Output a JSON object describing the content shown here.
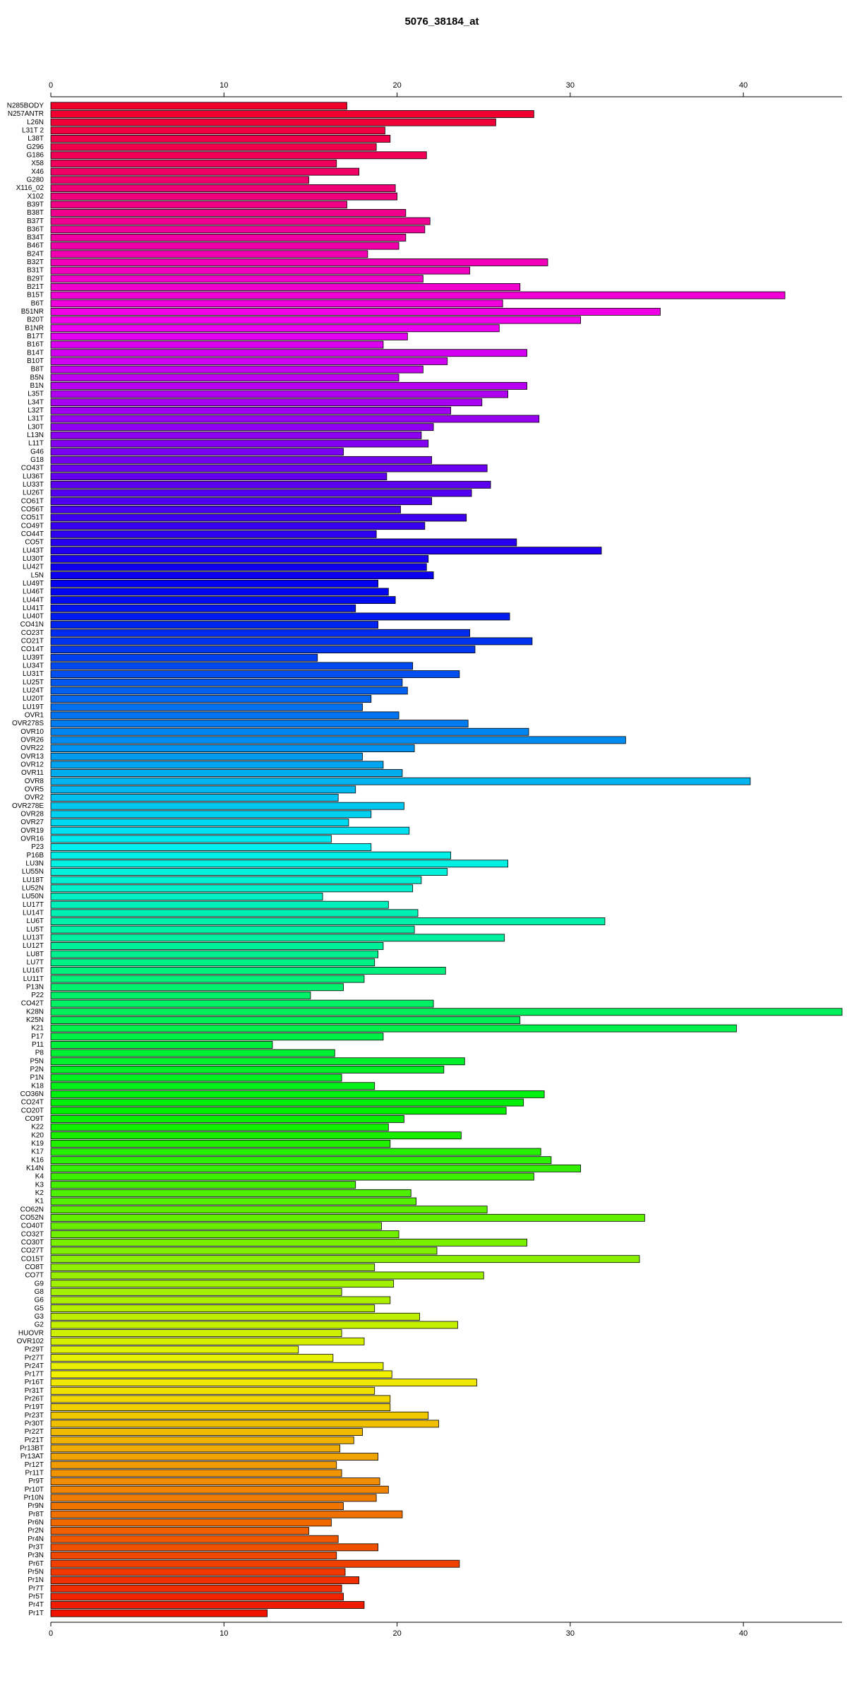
{
  "chart_data": {
    "type": "bar",
    "orientation": "horizontal",
    "title": "5076_38184_at",
    "categories": [
      "N285BODY",
      "N257ANTR",
      "L26N",
      "L31T 2",
      "L38T",
      "G296",
      "G186",
      "X58",
      "X46",
      "G280",
      "X116_02",
      "X102",
      "B39T",
      "B38T",
      "B37T",
      "B36T",
      "B34T",
      "B46T",
      "B24T",
      "B32T",
      "B31T",
      "B29T",
      "B21T",
      "B15T",
      "B6T",
      "B51NR",
      "B20T",
      "B1NR",
      "B17T",
      "B16T",
      "B14T",
      "B10T",
      "B8T",
      "B5N",
      "B1N",
      "L35T",
      "L34T",
      "L32T",
      "L31T",
      "L30T",
      "L13N",
      "L11T",
      "G46",
      "G18",
      "CO43T",
      "LU36T",
      "LU33T",
      "LU26T",
      "CO61T",
      "CO56T",
      "CO51T",
      "CO49T",
      "CO44T",
      "CO5T",
      "LU43T",
      "LU30T",
      "LU42T",
      "L5N",
      "LU49T",
      "LU46T",
      "LU44T",
      "LU41T",
      "LU40T",
      "CO41N",
      "CO23T",
      "CO21T",
      "CO14T",
      "LU39T",
      "LU34T",
      "LU31T",
      "LU25T",
      "LU24T",
      "LU20T",
      "LU19T",
      "OVR1",
      "OVR278S",
      "OVR10",
      "OVR26",
      "OVR22",
      "OVR13",
      "OVR12",
      "OVR11",
      "OVR8",
      "OVR5",
      "OVR2",
      "OVR278E",
      "OVR28",
      "OVR27",
      "OVR19",
      "OVR16",
      "P23",
      "P16B",
      "LU3N",
      "LU55N",
      "LU18T",
      "LU52N",
      "LU50N",
      "LU17T",
      "LU14T",
      "LU6T",
      "LU5T",
      "LU13T",
      "LU12T",
      "LU8T",
      "LU7T",
      "LU16T",
      "LU11T",
      "P13N",
      "P22",
      "CO42T",
      "K28N",
      "K25N",
      "K21",
      "P17",
      "P11",
      "P8",
      "P5N",
      "P2N",
      "P1N",
      "K18",
      "CO36N",
      "CO24T",
      "CO20T",
      "CO9T",
      "K22",
      "K20",
      "K19",
      "K17",
      "K16",
      "K14N",
      "K4",
      "K3",
      "K2",
      "K1",
      "CO62N",
      "CO52N",
      "CO40T",
      "CO32T",
      "CO30T",
      "CO27T",
      "CO15T",
      "CO8T",
      "CO7T",
      "G9",
      "G8",
      "G6",
      "G5",
      "G3",
      "G2",
      "HUOVR",
      "OVR102",
      "Pr29T",
      "Pr27T",
      "Pr24T",
      "Pr17T",
      "Pr16T",
      "Pr31T",
      "Pr26T",
      "Pr19T",
      "Pr23T",
      "Pr30T",
      "Pr22T",
      "Pr21T",
      "Pr13BT",
      "Pr13AT",
      "Pr12T",
      "Pr11T",
      "Pr9T",
      "Pr10T",
      "Pr10N",
      "Pr9N",
      "Pr8T",
      "Pr6N",
      "Pr2N",
      "Pr4N",
      "Pr3T",
      "Pr3N",
      "Pr6T",
      "Pr5N",
      "Pr1N",
      "Pr7T",
      "Pr5T",
      "Pr4T",
      "Pr1T"
    ],
    "values": [
      17.1,
      27.9,
      25.7,
      19.3,
      19.6,
      18.8,
      21.7,
      16.5,
      17.8,
      14.9,
      19.9,
      20.0,
      17.1,
      20.5,
      21.9,
      21.6,
      20.5,
      20.1,
      18.3,
      28.7,
      24.2,
      21.5,
      27.1,
      42.4,
      26.1,
      35.2,
      30.6,
      25.9,
      20.6,
      19.2,
      27.5,
      22.9,
      21.5,
      20.1,
      27.5,
      26.4,
      24.9,
      23.1,
      28.2,
      22.1,
      21.4,
      21.8,
      16.9,
      22.0,
      25.2,
      19.4,
      25.4,
      24.3,
      22.0,
      20.2,
      24.0,
      21.6,
      18.8,
      26.9,
      31.8,
      21.8,
      21.7,
      22.1,
      18.9,
      19.5,
      19.9,
      17.6,
      26.5,
      18.9,
      24.2,
      27.8,
      24.5,
      15.4,
      20.9,
      23.6,
      20.3,
      20.6,
      18.5,
      18.0,
      20.1,
      24.1,
      27.6,
      33.2,
      21.0,
      18.0,
      19.2,
      20.3,
      40.4,
      17.6,
      16.6,
      20.4,
      18.5,
      17.2,
      20.7,
      16.2,
      18.5,
      23.1,
      26.4,
      22.9,
      21.4,
      20.9,
      15.7,
      19.5,
      21.2,
      32.0,
      21.0,
      26.2,
      19.2,
      18.9,
      18.7,
      22.8,
      18.1,
      16.9,
      15.0,
      22.1,
      45.7,
      27.1,
      39.6,
      19.2,
      12.8,
      16.4,
      23.9,
      22.7,
      16.8,
      18.7,
      28.5,
      27.3,
      26.3,
      20.4,
      19.5,
      23.7,
      19.6,
      28.3,
      28.9,
      30.6,
      27.9,
      17.6,
      20.8,
      21.1,
      25.2,
      34.3,
      19.1,
      20.1,
      27.5,
      22.3,
      34.0,
      18.7,
      25.0,
      19.8,
      16.8,
      19.6,
      18.7,
      21.3,
      23.5,
      16.8,
      18.1,
      14.3,
      16.3,
      19.2,
      19.7,
      24.6,
      18.7,
      19.6,
      19.6,
      21.8,
      22.4,
      18.0,
      17.5,
      16.7,
      18.9,
      16.5,
      16.8,
      19.0,
      19.5,
      18.8,
      16.9,
      20.3,
      16.2,
      14.9,
      16.6,
      18.9,
      16.5,
      23.6,
      17.0,
      17.8,
      16.8,
      16.9,
      18.1,
      12.5
    ],
    "colors": [
      "hsl(350,100%,47%)",
      "hsl(348,100%,47%)",
      "hsl(346,100%,47%)",
      "hsl(344,100%,47%)",
      "hsl(342,100%,47%)",
      "hsl(341,100%,47%)",
      "hsl(339,100%,47%)",
      "hsl(337,100%,47%)",
      "hsl(335,100%,47%)",
      "hsl(333,100%,47%)",
      "hsl(331,100%,47%)",
      "hsl(329,100%,47%)",
      "hsl(327,100%,47%)",
      "hsl(325,100%,47%)",
      "hsl(324,100%,47%)",
      "hsl(322,100%,47%)",
      "hsl(320,100%,47%)",
      "hsl(318,100%,47%)",
      "hsl(316,100%,47%)",
      "hsl(314,100%,47%)",
      "hsl(312,100%,47%)",
      "hsl(310,100%,47%)",
      "hsl(309,100%,47%)",
      "hsl(307,100%,47%)",
      "hsl(305,100%,47%)",
      "hsl(303,100%,47%)",
      "hsl(301,100%,47%)",
      "hsl(299,100%,47%)",
      "hsl(297,100%,47%)",
      "hsl(295,100%,47%)",
      "hsl(293,100%,47%)",
      "hsl(292,100%,47%)",
      "hsl(290,100%,47%)",
      "hsl(288,100%,47%)",
      "hsl(286,100%,47%)",
      "hsl(284,100%,47%)",
      "hsl(282,100%,47%)",
      "hsl(280,100%,47%)",
      "hsl(278,100%,47%)",
      "hsl(276,100%,47%)",
      "hsl(275,100%,47%)",
      "hsl(273,100%,47%)",
      "hsl(271,100%,47%)",
      "hsl(269,100%,47%)",
      "hsl(267,100%,47%)",
      "hsl(265,100%,47%)",
      "hsl(263,100%,47%)",
      "hsl(261,100%,47%)",
      "hsl(260,100%,47%)",
      "hsl(258,100%,47%)",
      "hsl(256,100%,47%)",
      "hsl(254,100%,47%)",
      "hsl(252,100%,47%)",
      "hsl(250,100%,47%)",
      "hsl(248,100%,47%)",
      "hsl(246,100%,47%)",
      "hsl(244,100%,47%)",
      "hsl(243,100%,47%)",
      "hsl(241,100%,47%)",
      "hsl(239,100%,47%)",
      "hsl(237,100%,47%)",
      "hsl(235,100%,47%)",
      "hsl(233,100%,47%)",
      "hsl(231,100%,47%)",
      "hsl(229,100%,47%)",
      "hsl(227,100%,47%)",
      "hsl(226,100%,47%)",
      "hsl(224,100%,47%)",
      "hsl(222,100%,47%)",
      "hsl(220,100%,47%)",
      "hsl(218,100%,47%)",
      "hsl(216,100%,47%)",
      "hsl(214,100%,47%)",
      "hsl(212,100%,47%)",
      "hsl(211,100%,47%)",
      "hsl(209,100%,47%)",
      "hsl(207,100%,47%)",
      "hsl(205,100%,47%)",
      "hsl(203,100%,47%)",
      "hsl(201,100%,47%)",
      "hsl(199,100%,47%)",
      "hsl(197,100%,47%)",
      "hsl(195,100%,47%)",
      "hsl(194,100%,47%)",
      "hsl(192,100%,47%)",
      "hsl(190,100%,47%)",
      "hsl(188,100%,47%)",
      "hsl(186,100%,47%)",
      "hsl(184,100%,47%)",
      "hsl(182,100%,47%)",
      "hsl(180,100%,47%)",
      "hsl(178,100%,47%)",
      "hsl(177,100%,47%)",
      "hsl(175,100%,47%)",
      "hsl(173,100%,47%)",
      "hsl(171,100%,47%)",
      "hsl(169,100%,47%)",
      "hsl(167,100%,47%)",
      "hsl(165,100%,47%)",
      "hsl(163,100%,47%)",
      "hsl(161,100%,47%)",
      "hsl(160,100%,47%)",
      "hsl(158,100%,47%)",
      "hsl(156,100%,47%)",
      "hsl(154,100%,47%)",
      "hsl(152,100%,47%)",
      "hsl(150,100%,47%)",
      "hsl(148,100%,47%)",
      "hsl(146,100%,47%)",
      "hsl(145,100%,47%)",
      "hsl(143,100%,47%)",
      "hsl(141,100%,47%)",
      "hsl(139,100%,47%)",
      "hsl(137,100%,47%)",
      "hsl(135,100%,47%)",
      "hsl(133,100%,47%)",
      "hsl(131,100%,47%)",
      "hsl(129,100%,47%)",
      "hsl(128,100%,47%)",
      "hsl(126,100%,47%)",
      "hsl(124,100%,47%)",
      "hsl(122,100%,47%)",
      "hsl(120,100%,47%)",
      "hsl(118,100%,47%)",
      "hsl(116,100%,47%)",
      "hsl(114,100%,47%)",
      "hsl(112,100%,47%)",
      "hsl(111,100%,47%)",
      "hsl(109,100%,47%)",
      "hsl(107,100%,47%)",
      "hsl(105,100%,47%)",
      "hsl(103,100%,47%)",
      "hsl(101,100%,47%)",
      "hsl(99,100%,47%)",
      "hsl(97,100%,47%)",
      "hsl(96,100%,47%)",
      "hsl(94,100%,47%)",
      "hsl(92,100%,47%)",
      "hsl(90,100%,47%)",
      "hsl(88,100%,47%)",
      "hsl(86,100%,47%)",
      "hsl(84,100%,47%)",
      "hsl(82,100%,47%)",
      "hsl(80,100%,47%)",
      "hsl(79,100%,47%)",
      "hsl(77,100%,47%)",
      "hsl(75,100%,47%)",
      "hsl(73,100%,47%)",
      "hsl(71,100%,47%)",
      "hsl(69,100%,47%)",
      "hsl(67,100%,47%)",
      "hsl(65,100%,47%)",
      "hsl(63,100%,47%)",
      "hsl(62,100%,47%)",
      "hsl(60,100%,47%)",
      "hsl(58,100%,47%)",
      "hsl(56,100%,47%)",
      "hsl(54,100%,47%)",
      "hsl(52,100%,47%)",
      "hsl(50,100%,47%)",
      "hsl(48,100%,47%)",
      "hsl(46,100%,47%)",
      "hsl(45,100%,47%)",
      "hsl(43,100%,47%)",
      "hsl(41,100%,47%)",
      "hsl(39,100%,47%)",
      "hsl(37,100%,47%)",
      "hsl(35,100%,47%)",
      "hsl(33,100%,47%)",
      "hsl(31,100%,47%)",
      "hsl(29,100%,47%)",
      "hsl(28,100%,47%)",
      "hsl(26,100%,47%)",
      "hsl(24,100%,47%)",
      "hsl(22,100%,47%)",
      "hsl(20,100%,47%)",
      "hsl(18,100%,47%)",
      "hsl(16,100%,47%)",
      "hsl(14,100%,47%)",
      "hsl(12,100%,47%)",
      "hsl(11,100%,47%)",
      "hsl(9,100%,47%)",
      "hsl(7,100%,47%)",
      "hsl(5,100%,47%)"
    ],
    "xlim": [
      0,
      45.7
    ],
    "xticks": [
      0,
      10,
      20,
      30,
      40
    ],
    "grid": false
  }
}
